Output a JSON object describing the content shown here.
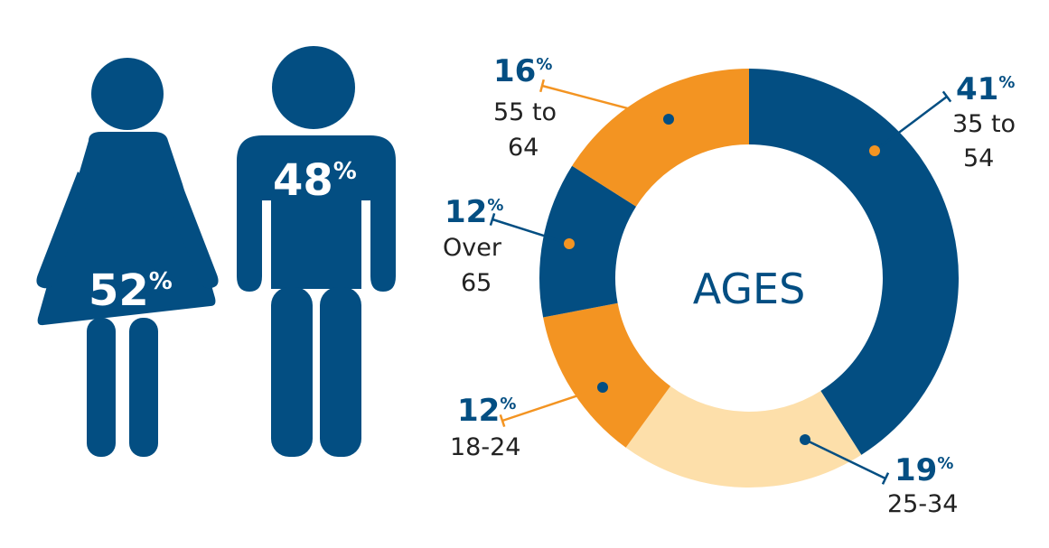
{
  "colors": {
    "navy": "#034e82",
    "orange": "#f39422",
    "peach": "#fddfaa",
    "text": "#222222",
    "white": "#ffffff"
  },
  "gender": {
    "female": {
      "name": "female",
      "value": 52,
      "number": "52",
      "suffix": "%"
    },
    "male": {
      "name": "male",
      "value": 48,
      "number": "48",
      "suffix": "%"
    }
  },
  "chart_data": {
    "type": "pie",
    "variant": "donut",
    "title": "AGES",
    "start": "top, clockwise",
    "slices": [
      {
        "label": "35 to 54",
        "value": 41,
        "number": "41",
        "suffix": "%",
        "label_lines": [
          "35 to",
          "54"
        ],
        "color": "#034e82"
      },
      {
        "label": "25-34",
        "value": 19,
        "number": "19",
        "suffix": "%",
        "label_lines": [
          "25-34"
        ],
        "color": "#fddfaa"
      },
      {
        "label": "18-24",
        "value": 12,
        "number": "12",
        "suffix": "%",
        "label_lines": [
          "18-24"
        ],
        "color": "#f39422"
      },
      {
        "label": "Over 65",
        "value": 12,
        "number": "12",
        "suffix": "%",
        "label_lines": [
          "Over",
          "65"
        ],
        "color": "#034e82"
      },
      {
        "label": "55 to 64",
        "value": 16,
        "number": "16",
        "suffix": "%",
        "label_lines": [
          "55 to",
          "64"
        ],
        "color": "#f39422"
      }
    ]
  }
}
